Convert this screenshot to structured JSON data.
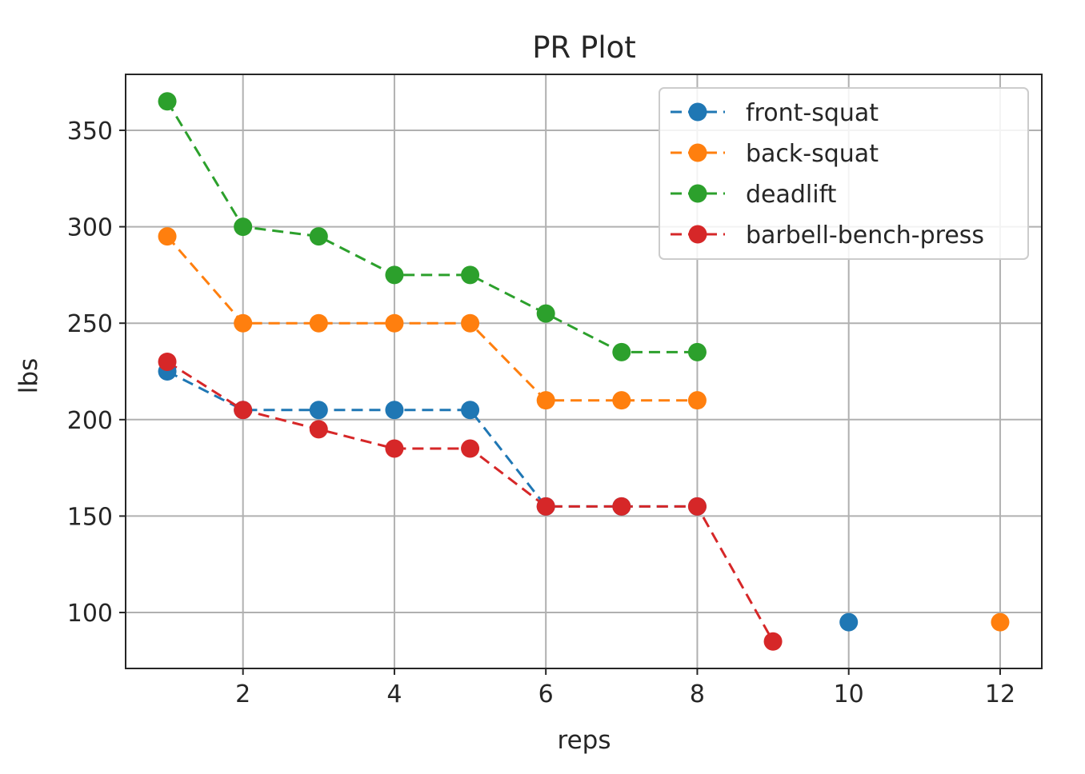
{
  "chart_data": {
    "type": "line",
    "title": "PR Plot",
    "xlabel": "reps",
    "ylabel": "lbs",
    "xlim": [
      0.45,
      12.55
    ],
    "ylim": [
      71,
      379
    ],
    "xticks": [
      2,
      4,
      6,
      8,
      10,
      12
    ],
    "yticks": [
      100,
      150,
      200,
      250,
      300,
      350
    ],
    "grid": true,
    "legend_position": "top-right",
    "line_style": "dashed",
    "marker": "circle",
    "series": [
      {
        "name": "front-squat",
        "color": "#1f77b4",
        "x": [
          1,
          2,
          3,
          4,
          5,
          6,
          7,
          8
        ],
        "y": [
          225,
          205,
          205,
          205,
          205,
          155,
          155,
          155
        ],
        "extra_points": [
          {
            "x": 10,
            "y": 95
          }
        ]
      },
      {
        "name": "back-squat",
        "color": "#ff7f0e",
        "x": [
          1,
          2,
          3,
          4,
          5,
          6,
          7,
          8
        ],
        "y": [
          295,
          250,
          250,
          250,
          250,
          210,
          210,
          210
        ],
        "extra_points": [
          {
            "x": 12,
            "y": 95
          }
        ]
      },
      {
        "name": "deadlift",
        "color": "#2ca02c",
        "x": [
          1,
          2,
          3,
          4,
          5,
          6,
          7,
          8
        ],
        "y": [
          365,
          300,
          295,
          275,
          275,
          255,
          235,
          235
        ],
        "extra_points": []
      },
      {
        "name": "barbell-bench-press",
        "color": "#d62728",
        "x": [
          1,
          2,
          3,
          4,
          5,
          6,
          7,
          8,
          9
        ],
        "y": [
          230,
          205,
          195,
          185,
          185,
          155,
          155,
          155,
          85
        ],
        "extra_points": []
      }
    ]
  }
}
